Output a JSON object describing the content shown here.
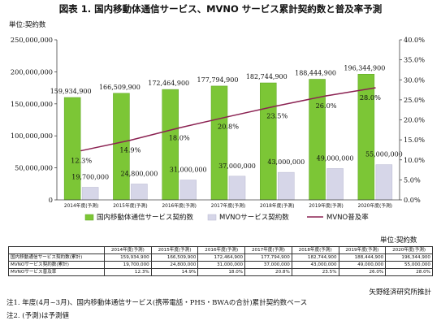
{
  "title": "図表 1. 国内移動体通信サービス、MVNO サービス累計契約数と普及率予測",
  "unit_left": "単位:契約数",
  "unit_right": "単位:契約数",
  "chart_data": {
    "type": "bar",
    "categories": [
      "2014年度(予測)",
      "2015年度(予測)",
      "2016年度(予測)",
      "2017年度(予測)",
      "2018年度(予測)",
      "2019年度(予測)",
      "2020年度(予測)"
    ],
    "series": [
      {
        "name": "国内移動体通信サービス契約数",
        "type": "bar",
        "axis": "left",
        "values": [
          159934900,
          166509900,
          172464900,
          177794900,
          182744900,
          188444900,
          196344900
        ],
        "labels": [
          "159,934,900",
          "166,509,900",
          "172,464,900",
          "177,794,900",
          "182,744,900",
          "188,444,900",
          "196,344,900"
        ],
        "color": "#7cc636"
      },
      {
        "name": "MVNOサービス契約数",
        "type": "bar",
        "axis": "left",
        "values": [
          19700000,
          24800000,
          31000000,
          37000000,
          43000000,
          49000000,
          55000000
        ],
        "labels": [
          "19,700,000",
          "24,800,000",
          "31,000,000",
          "37,000,000",
          "43,000,000",
          "49,000,000",
          "55,000,000"
        ],
        "color": "#d6d6e8"
      },
      {
        "name": "MVNO普及率",
        "type": "line",
        "axis": "right",
        "values": [
          12.3,
          14.9,
          18.0,
          20.8,
          23.5,
          26.0,
          28.0
        ],
        "labels": [
          "12.3%",
          "14.9%",
          "18.0%",
          "20.8%",
          "23.5%",
          "26.0%",
          "28.0%"
        ],
        "color": "#8b2252"
      }
    ],
    "yaxis_left": {
      "range": [
        0,
        250000000
      ],
      "ticks": [
        "0",
        "50,000,000",
        "100,000,000",
        "150,000,000",
        "200,000,000",
        "250,000,000"
      ]
    },
    "yaxis_right": {
      "range": [
        0,
        40
      ],
      "ticks": [
        "0.0%",
        "5.0%",
        "10.0%",
        "15.0%",
        "20.0%",
        "25.0%",
        "30.0%",
        "35.0%",
        "40.0%"
      ]
    },
    "legend_position": "bottom",
    "grid": false
  },
  "table": {
    "headers": [
      "",
      "2014年度(予測)",
      "2015年度(予測)",
      "2016年度(予測)",
      "2017年度(予測)",
      "2018年度(予測)",
      "2019年度(予測)",
      "2020年度(予測)"
    ],
    "rows": [
      [
        "国内移動通信サービス契約数(累計)",
        "159,934,900",
        "166,509,900",
        "172,464,900",
        "177,794,900",
        "182,744,900",
        "188,444,900",
        "196,344,900"
      ],
      [
        "MVNOサービス契約数(累計)",
        "19,700,000",
        "24,800,000",
        "31,000,000",
        "37,000,000",
        "43,000,000",
        "49,000,000",
        "55,000,000"
      ],
      [
        "MVNOサービス普及率",
        "12.3%",
        "14.9%",
        "18.0%",
        "20.8%",
        "23.5%",
        "26.0%",
        "28.0%"
      ]
    ]
  },
  "source": "矢野経済研究所推計",
  "note1": "注1. 年度(4月~3月)、国内移動体通信サービス(携帯電話・PHS・BWAの合計)累計契約数ベース",
  "note2": "注2. (予測)は予測値"
}
